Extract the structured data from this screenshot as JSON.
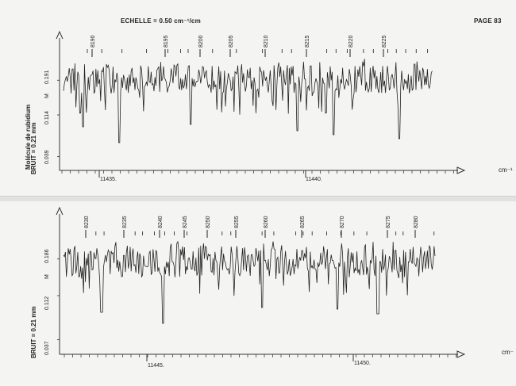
{
  "header": {
    "echelle": "ECHELLE = 0.50 cm⁻¹/cm",
    "page": "PAGE 83",
    "side_title": "Molécule de rubidium"
  },
  "chart_data": [
    {
      "type": "line",
      "title": "ECHELLE = 0.50 cm⁻¹/cm",
      "xlabel": "cm⁻¹",
      "ylabel": "BRUIT = 0.21 mm",
      "bruit": "BRUIT = 0.21 mm",
      "y_marker": "M",
      "x_ticks": [
        "11435.",
        "11440."
      ],
      "y_ticks": [
        "0.191",
        "0.114",
        "0.039"
      ],
      "line_numbers": [
        "8190",
        "8195",
        "8200",
        "8205",
        "8210",
        "8215",
        "8220",
        "8225"
      ],
      "series_color": "#222222"
    },
    {
      "type": "line",
      "xlabel": "cm⁻",
      "ylabel": "BRUIT = 0.21 mm",
      "bruit": "BRUIT = 0.21 mm",
      "y_marker": "M",
      "x_ticks": [
        "11445.",
        "11450."
      ],
      "y_ticks": [
        "0.186",
        "0.112",
        "0.037"
      ],
      "line_numbers": [
        "8230",
        "8235",
        "8240",
        "8245",
        "8250",
        "8255",
        "8260",
        "8265",
        "8270",
        "8275",
        "8280"
      ],
      "series_color": "#222222"
    }
  ]
}
